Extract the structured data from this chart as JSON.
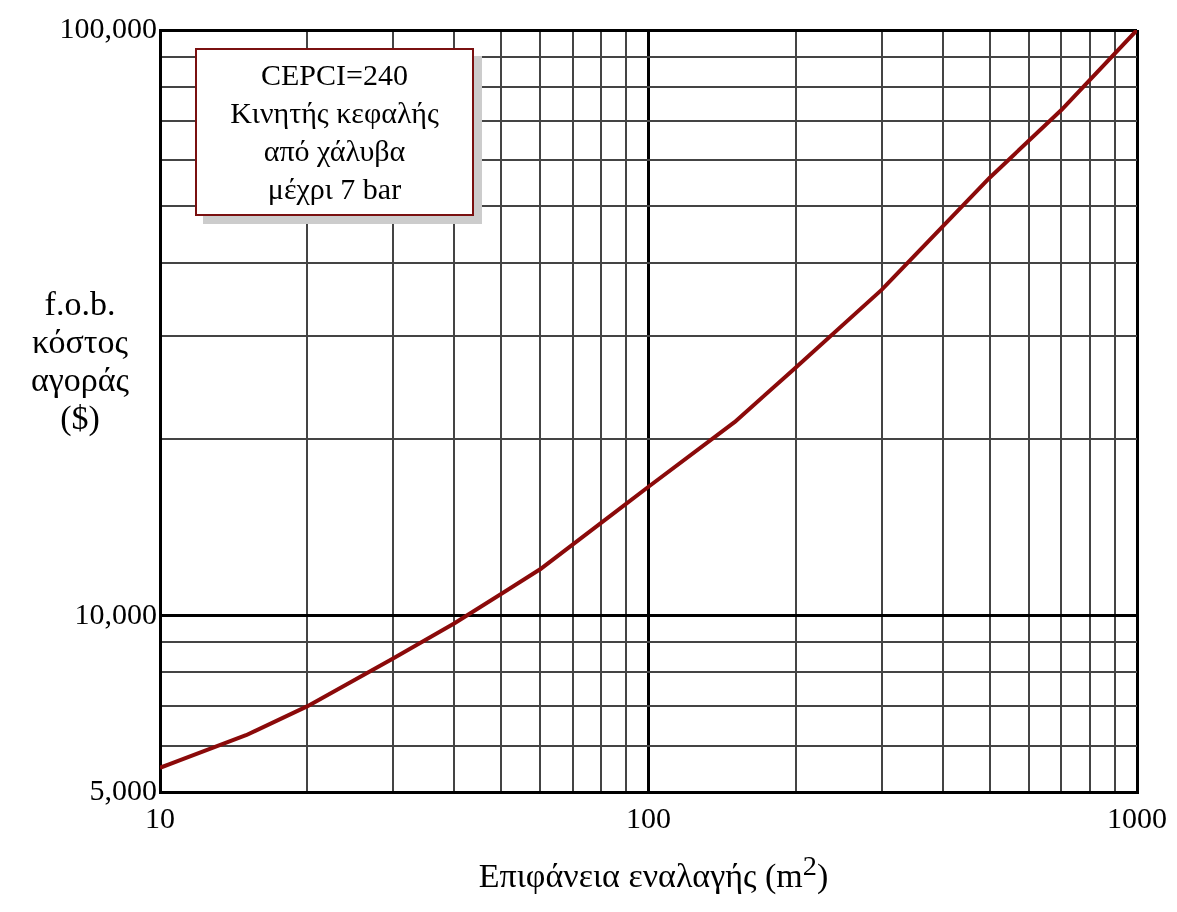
{
  "chart_data": {
    "type": "line",
    "xlabel": "Επιφάνεια εναλαγής  (m$^{2}$)",
    "ylabel": "f.o.b.\nκόστος\nαγοράς\n($)",
    "annotations": [
      "CEPCI=240\nΚινητής κεφαλής\nαπό χάλυβα\nμέχρι 7 bar"
    ],
    "log": "xy",
    "grid": true,
    "marker": "none",
    "legend": false,
    "xlim": [
      10,
      1000
    ],
    "ylim": [
      5000,
      100000
    ],
    "xticks": [
      10,
      {
        "value": 20,
        "label": null
      },
      {
        "value": 30,
        "label": null
      },
      {
        "value": 40,
        "label": null
      },
      {
        "value": 50,
        "label": null
      },
      {
        "value": 60,
        "label": null
      },
      {
        "value": 70,
        "label": null
      },
      {
        "value": 80,
        "label": null
      },
      {
        "value": 90,
        "label": null
      },
      100,
      {
        "value": 200,
        "label": null
      },
      {
        "value": 300,
        "label": null
      },
      {
        "value": 400,
        "label": null
      },
      {
        "value": 500,
        "label": null
      },
      {
        "value": 600,
        "label": null
      },
      {
        "value": 700,
        "label": null
      },
      {
        "value": 800,
        "label": null
      },
      {
        "value": 900,
        "label": null
      },
      1000
    ],
    "yticks": [
      {
        "value": 5000,
        "label": "5,000"
      },
      {
        "value": 6000,
        "label": null
      },
      {
        "value": 7000,
        "label": null
      },
      {
        "value": 8000,
        "label": null
      },
      {
        "value": 9000,
        "label": null
      },
      {
        "value": 10000,
        "label": "10,000"
      },
      {
        "value": 20000,
        "label": null
      },
      {
        "value": 30000,
        "label": null
      },
      {
        "value": 40000,
        "label": null
      },
      {
        "value": 50000,
        "label": null
      },
      {
        "value": 60000,
        "label": null
      },
      {
        "value": 70000,
        "label": null
      },
      {
        "value": 80000,
        "label": null
      },
      {
        "value": 90000,
        "label": null
      },
      {
        "value": 100000,
        "label": "100,000"
      }
    ],
    "series": [
      {
        "color": "#8b0a0a",
        "x": [
          10,
          15,
          20,
          30,
          40,
          60,
          100,
          150,
          200,
          300,
          500,
          700,
          1000
        ],
        "values": [
          5500,
          6250,
          7000,
          8450,
          9700,
          12000,
          16600,
          21400,
          26500,
          36000,
          56000,
          73000,
          100000
        ]
      }
    ]
  }
}
